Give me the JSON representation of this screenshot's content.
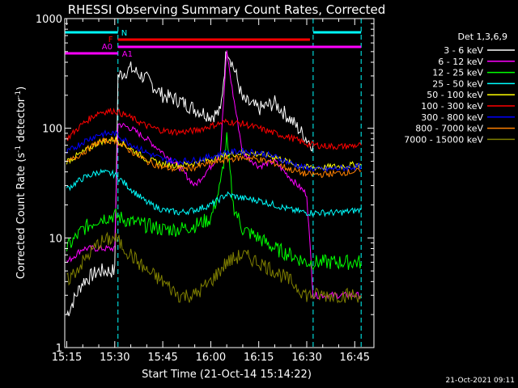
{
  "chart_data": {
    "type": "line",
    "title": "RHESSI Observing Summary Count Rates, Corrected",
    "xlabel": "Start Time (21-Oct-14 15:14:22)",
    "ylabel_main": "Corrected Count Rate (s",
    "ylabel_sup1": "-1",
    "ylabel_mid": " detector",
    "ylabel_sup2": "-1",
    "ylabel_end": ")",
    "y_scale": "log",
    "ylim": [
      1,
      1000
    ],
    "xlim": [
      "15:14:22",
      "16:51:00"
    ],
    "x_ticks": [
      "15:15",
      "15:30",
      "15:45",
      "16:00",
      "16:15",
      "16:30",
      "16:45"
    ],
    "y_ticks": [
      "1",
      "10",
      "100",
      "1000"
    ],
    "grid": false,
    "legend_position": "top-right",
    "legend_title": "Det 1,3,6,9",
    "timestamp": "21-Oct-2021 09:11",
    "markers": {
      "N": {
        "label": "N",
        "start": "15:31",
        "end": "16:47",
        "color": "#00FFFF"
      },
      "F": {
        "label": "F",
        "start": "15:31",
        "end": "16:31",
        "color": "#FF0000"
      },
      "A0": {
        "label": "A0",
        "start": "15:14:22",
        "end": "15:31",
        "color": "#FF00FF"
      },
      "A1": {
        "label": "A1",
        "start": "15:31",
        "end": "16:47",
        "color": "#FF00FF"
      },
      "night1_start": "15:14:22",
      "night1_end": "15:31",
      "night2_start": "16:32",
      "night2_end": "16:47"
    },
    "series": [
      {
        "name": "3 - 6 keV",
        "color": "#FFFFFF",
        "points": [
          [
            "15:15",
            2
          ],
          [
            "15:20",
            4
          ],
          [
            "15:25",
            5
          ],
          [
            "15:30",
            5
          ],
          [
            "15:31",
            300
          ],
          [
            "15:35",
            350
          ],
          [
            "15:40",
            280
          ],
          [
            "15:45",
            200
          ],
          [
            "15:50",
            180
          ],
          [
            "15:55",
            150
          ],
          [
            "16:00",
            130
          ],
          [
            "16:03",
            140
          ],
          [
            "16:05",
            550
          ],
          [
            "16:08",
            300
          ],
          [
            "16:10",
            180
          ],
          [
            "16:15",
            150
          ],
          [
            "16:20",
            170
          ],
          [
            "16:25",
            120
          ],
          [
            "16:30",
            80
          ],
          [
            "16:32",
            70
          ]
        ]
      },
      {
        "name": "6 - 12 keV",
        "color": "#FF00FF",
        "points": [
          [
            "15:15",
            6
          ],
          [
            "15:20",
            8
          ],
          [
            "15:25",
            8
          ],
          [
            "15:30",
            8
          ],
          [
            "15:31",
            110
          ],
          [
            "15:35",
            100
          ],
          [
            "15:40",
            80
          ],
          [
            "15:45",
            60
          ],
          [
            "15:50",
            45
          ],
          [
            "15:55",
            30
          ],
          [
            "16:00",
            45
          ],
          [
            "16:03",
            60
          ],
          [
            "16:05",
            500
          ],
          [
            "16:07",
            200
          ],
          [
            "16:10",
            60
          ],
          [
            "16:15",
            45
          ],
          [
            "16:20",
            50
          ],
          [
            "16:25",
            35
          ],
          [
            "16:30",
            25
          ],
          [
            "16:32",
            3
          ],
          [
            "16:40",
            3
          ],
          [
            "16:47",
            3
          ]
        ]
      },
      {
        "name": "12 - 25 keV",
        "color": "#00FF00",
        "points": [
          [
            "15:15",
            8
          ],
          [
            "15:20",
            12
          ],
          [
            "15:25",
            15
          ],
          [
            "15:30",
            16
          ],
          [
            "15:35",
            14
          ],
          [
            "15:40",
            13
          ],
          [
            "15:45",
            12
          ],
          [
            "15:50",
            12
          ],
          [
            "15:55",
            13
          ],
          [
            "16:00",
            15
          ],
          [
            "16:03",
            30
          ],
          [
            "16:05",
            80
          ],
          [
            "16:07",
            20
          ],
          [
            "16:10",
            12
          ],
          [
            "16:15",
            10
          ],
          [
            "16:20",
            8
          ],
          [
            "16:25",
            7
          ],
          [
            "16:30",
            6
          ],
          [
            "16:35",
            6
          ],
          [
            "16:40",
            6
          ],
          [
            "16:47",
            6
          ]
        ]
      },
      {
        "name": "25 - 50 keV",
        "color": "#00FFFF",
        "points": [
          [
            "15:15",
            28
          ],
          [
            "15:20",
            35
          ],
          [
            "15:25",
            40
          ],
          [
            "15:30",
            38
          ],
          [
            "15:35",
            28
          ],
          [
            "15:40",
            21
          ],
          [
            "15:45",
            18
          ],
          [
            "15:50",
            17
          ],
          [
            "15:55",
            18
          ],
          [
            "16:00",
            20
          ],
          [
            "16:05",
            25
          ],
          [
            "16:10",
            23
          ],
          [
            "16:15",
            22
          ],
          [
            "16:20",
            20
          ],
          [
            "16:25",
            18
          ],
          [
            "16:30",
            17
          ],
          [
            "16:35",
            17
          ],
          [
            "16:40",
            17
          ],
          [
            "16:47",
            18
          ]
        ]
      },
      {
        "name": "50 - 100 keV",
        "color": "#FFFF00",
        "points": [
          [
            "15:15",
            50
          ],
          [
            "15:20",
            60
          ],
          [
            "15:25",
            75
          ],
          [
            "15:30",
            80
          ],
          [
            "15:35",
            65
          ],
          [
            "15:40",
            52
          ],
          [
            "15:45",
            47
          ],
          [
            "15:50",
            46
          ],
          [
            "15:55",
            48
          ],
          [
            "16:00",
            52
          ],
          [
            "16:05",
            57
          ],
          [
            "16:10",
            60
          ],
          [
            "16:15",
            58
          ],
          [
            "16:20",
            55
          ],
          [
            "16:25",
            48
          ],
          [
            "16:30",
            44
          ],
          [
            "16:35",
            44
          ],
          [
            "16:40",
            45
          ],
          [
            "16:47",
            47
          ]
        ]
      },
      {
        "name": "100 - 300 keV",
        "color": "#FF0000",
        "points": [
          [
            "15:15",
            80
          ],
          [
            "15:20",
            110
          ],
          [
            "15:25",
            140
          ],
          [
            "15:30",
            145
          ],
          [
            "15:35",
            125
          ],
          [
            "15:40",
            105
          ],
          [
            "15:45",
            95
          ],
          [
            "15:50",
            92
          ],
          [
            "15:55",
            95
          ],
          [
            "16:00",
            105
          ],
          [
            "16:05",
            115
          ],
          [
            "16:10",
            110
          ],
          [
            "16:15",
            100
          ],
          [
            "16:20",
            90
          ],
          [
            "16:25",
            82
          ],
          [
            "16:30",
            72
          ],
          [
            "16:35",
            69
          ],
          [
            "16:40",
            68
          ],
          [
            "16:47",
            70
          ]
        ]
      },
      {
        "name": "300 - 800 keV",
        "color": "#0000FF",
        "points": [
          [
            "15:15",
            60
          ],
          [
            "15:20",
            75
          ],
          [
            "15:25",
            88
          ],
          [
            "15:30",
            90
          ],
          [
            "15:35",
            72
          ],
          [
            "15:40",
            60
          ],
          [
            "15:45",
            52
          ],
          [
            "15:50",
            50
          ],
          [
            "15:55",
            51
          ],
          [
            "16:00",
            55
          ],
          [
            "16:05",
            60
          ],
          [
            "16:10",
            62
          ],
          [
            "16:15",
            60
          ],
          [
            "16:20",
            55
          ],
          [
            "16:25",
            48
          ],
          [
            "16:30",
            43
          ],
          [
            "16:35",
            42
          ],
          [
            "16:40",
            43
          ],
          [
            "16:47",
            45
          ]
        ]
      },
      {
        "name": "800 - 7000 keV",
        "color": "#FF8000",
        "points": [
          [
            "15:15",
            48
          ],
          [
            "15:20",
            60
          ],
          [
            "15:25",
            75
          ],
          [
            "15:30",
            78
          ],
          [
            "15:35",
            62
          ],
          [
            "15:40",
            50
          ],
          [
            "15:45",
            44
          ],
          [
            "15:50",
            42
          ],
          [
            "15:55",
            44
          ],
          [
            "16:00",
            48
          ],
          [
            "16:05",
            52
          ],
          [
            "16:10",
            54
          ],
          [
            "16:15",
            52
          ],
          [
            "16:20",
            48
          ],
          [
            "16:25",
            42
          ],
          [
            "16:30",
            38
          ],
          [
            "16:35",
            38
          ],
          [
            "16:40",
            39
          ],
          [
            "16:47",
            41
          ]
        ]
      },
      {
        "name": "7000 - 15000 keV",
        "color": "#808000",
        "points": [
          [
            "15:15",
            4
          ],
          [
            "15:20",
            6
          ],
          [
            "15:25",
            9
          ],
          [
            "15:30",
            10
          ],
          [
            "15:35",
            7
          ],
          [
            "15:40",
            5
          ],
          [
            "15:45",
            4
          ],
          [
            "15:50",
            3
          ],
          [
            "15:55",
            3
          ],
          [
            "16:00",
            4
          ],
          [
            "16:05",
            6
          ],
          [
            "16:10",
            7
          ],
          [
            "16:15",
            6
          ],
          [
            "16:20",
            5
          ],
          [
            "16:25",
            4
          ],
          [
            "16:30",
            3
          ],
          [
            "16:35",
            3
          ],
          [
            "16:40",
            3
          ],
          [
            "16:47",
            3
          ]
        ]
      }
    ]
  }
}
